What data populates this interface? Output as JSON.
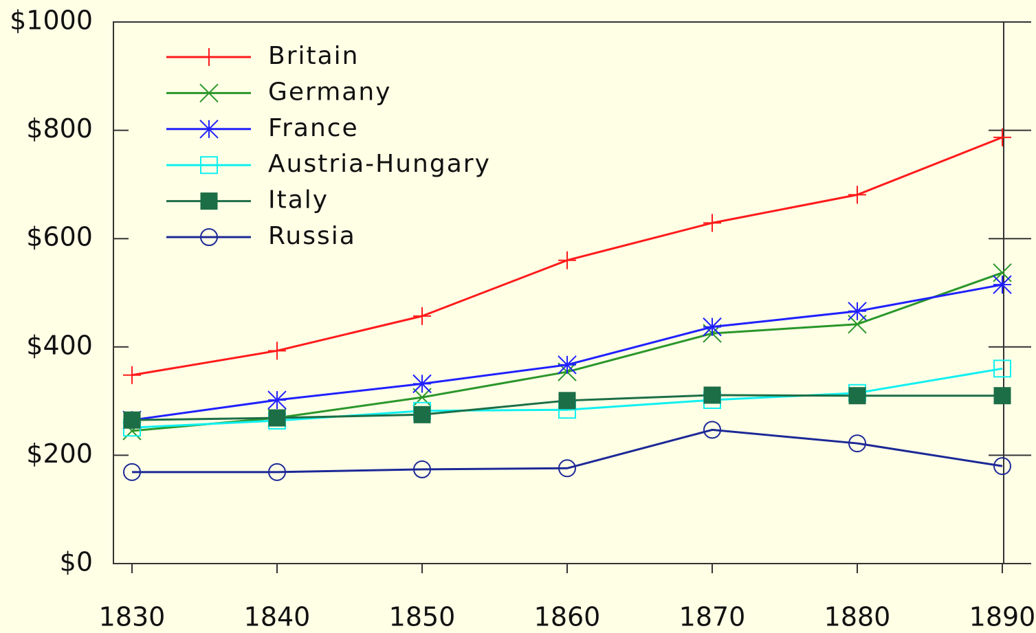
{
  "chart_data": {
    "type": "line",
    "xticks": [
      1830,
      1840,
      1850,
      1860,
      1870,
      1880,
      1890
    ],
    "xlim": [
      1830,
      1890
    ],
    "ylim": [
      0,
      1000
    ],
    "yticks": [
      {
        "value": 0,
        "label": "$0"
      },
      {
        "value": 200,
        "label": "$200"
      },
      {
        "value": 400,
        "label": "$400"
      },
      {
        "value": 600,
        "label": "$600"
      },
      {
        "value": 800,
        "label": "$800"
      },
      {
        "value": 1000,
        "label": "$1000"
      }
    ],
    "x": [
      1830,
      1840,
      1850,
      1860,
      1870,
      1880,
      1890
    ],
    "legend": "upper left",
    "series": [
      {
        "name": "Britain",
        "color": "#ff1a1a",
        "marker": "plus",
        "values": [
          348,
          393,
          457,
          560,
          629,
          681,
          787
        ]
      },
      {
        "name": "Germany",
        "color": "#2a962a",
        "marker": "cross",
        "values": [
          245,
          269,
          307,
          354,
          425,
          442,
          537
        ]
      },
      {
        "name": "France",
        "color": "#2020ff",
        "marker": "star",
        "values": [
          265,
          302,
          332,
          367,
          437,
          466,
          515
        ]
      },
      {
        "name": "Austria-Hungary",
        "color": "#10f0f0",
        "marker": "square-open",
        "values": [
          251,
          264,
          282,
          284,
          302,
          315,
          360
        ]
      },
      {
        "name": "Italy",
        "color": "#1c6e46",
        "marker": "square",
        "values": [
          265,
          269,
          275,
          301,
          311,
          310,
          310
        ]
      },
      {
        "name": "Russia",
        "color": "#1c2896",
        "marker": "circle-open",
        "values": [
          169,
          169,
          174,
          176,
          247,
          222,
          180
        ]
      }
    ]
  }
}
